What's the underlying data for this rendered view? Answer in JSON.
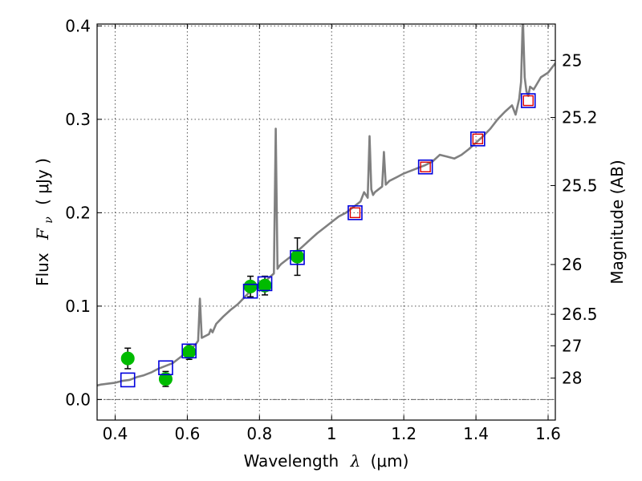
{
  "chart_data": {
    "type": "scatter",
    "xlabel": "Wavelength",
    "xlabel_symbol": "λ",
    "xlabel_unit": "(μm)",
    "ylabel": "Flux",
    "ylabel_symbol": "F",
    "ylabel_sub": "ν",
    "ylabel_unit": "( μJy )",
    "y2label": "Magnitude (AB)",
    "xlim": [
      0.35,
      1.62
    ],
    "ylim": [
      -0.022,
      0.402
    ],
    "grid": true,
    "x_ticks": [
      0.4,
      0.6,
      0.8,
      1.0,
      1.2,
      1.4,
      1.6
    ],
    "x_tick_labels": [
      "0.4",
      "0.6",
      "0.8",
      "1",
      "1.2",
      "1.4",
      "1.6"
    ],
    "y_ticks": [
      0.0,
      0.1,
      0.2,
      0.3,
      0.4
    ],
    "y_tick_labels": [
      "0.0",
      "0.1",
      "0.2",
      "0.3",
      "0.4"
    ],
    "y2_ticks": [
      25,
      25.2,
      25.5,
      26,
      26.5,
      27,
      28
    ],
    "y2_tick_labels": [
      "25",
      "25.2",
      "25.5",
      "26",
      "26.5",
      "27",
      "28"
    ],
    "colors": {
      "model": "#808080",
      "observed": "#00bb00",
      "model_phot": "#0000dd",
      "ir_phot": "#dd0000",
      "errorbar": "#000000",
      "zero_line": "#666666"
    },
    "series": [
      {
        "name": "model-spectrum",
        "kind": "line",
        "x": [
          0.35,
          0.36,
          0.38,
          0.4,
          0.42,
          0.44,
          0.46,
          0.48,
          0.5,
          0.52,
          0.54,
          0.56,
          0.57,
          0.58,
          0.59,
          0.6,
          0.61,
          0.615,
          0.62,
          0.625,
          0.63,
          0.635,
          0.64,
          0.65,
          0.66,
          0.665,
          0.67,
          0.68,
          0.69,
          0.7,
          0.72,
          0.74,
          0.75,
          0.76,
          0.78,
          0.8,
          0.82,
          0.84,
          0.845,
          0.85,
          0.855,
          0.86,
          0.88,
          0.9,
          0.92,
          0.94,
          0.96,
          0.98,
          1.0,
          1.02,
          1.04,
          1.06,
          1.08,
          1.09,
          1.1,
          1.105,
          1.11,
          1.115,
          1.12,
          1.14,
          1.145,
          1.15,
          1.16,
          1.18,
          1.2,
          1.22,
          1.24,
          1.26,
          1.28,
          1.3,
          1.32,
          1.34,
          1.36,
          1.38,
          1.4,
          1.42,
          1.44,
          1.46,
          1.48,
          1.5,
          1.51,
          1.52,
          1.525,
          1.53,
          1.535,
          1.54,
          1.545,
          1.55,
          1.56,
          1.58,
          1.6,
          1.62
        ],
        "y": [
          0.015,
          0.016,
          0.017,
          0.018,
          0.02,
          0.021,
          0.024,
          0.026,
          0.029,
          0.033,
          0.036,
          0.039,
          0.042,
          0.045,
          0.048,
          0.051,
          0.054,
          0.056,
          0.058,
          0.06,
          0.063,
          0.108,
          0.066,
          0.068,
          0.07,
          0.075,
          0.072,
          0.081,
          0.085,
          0.089,
          0.096,
          0.102,
          0.106,
          0.11,
          0.118,
          0.124,
          0.128,
          0.135,
          0.29,
          0.14,
          0.143,
          0.145,
          0.151,
          0.157,
          0.164,
          0.171,
          0.178,
          0.184,
          0.19,
          0.196,
          0.2,
          0.206,
          0.212,
          0.222,
          0.216,
          0.282,
          0.225,
          0.219,
          0.222,
          0.228,
          0.265,
          0.23,
          0.234,
          0.238,
          0.242,
          0.245,
          0.248,
          0.251,
          0.255,
          0.262,
          0.26,
          0.258,
          0.262,
          0.268,
          0.275,
          0.282,
          0.29,
          0.3,
          0.308,
          0.315,
          0.305,
          0.322,
          0.34,
          0.41,
          0.345,
          0.33,
          0.325,
          0.335,
          0.332,
          0.345,
          0.35,
          0.36
        ]
      },
      {
        "name": "observed",
        "kind": "points-errorbar",
        "x": [
          0.435,
          0.54,
          0.605,
          0.775,
          0.815,
          0.905
        ],
        "y": [
          0.044,
          0.022,
          0.051,
          0.121,
          0.122,
          0.153
        ],
        "yerr": [
          0.011,
          0.008,
          0.008,
          0.011,
          0.01,
          0.02
        ]
      },
      {
        "name": "model-photometry",
        "kind": "open-squares",
        "x": [
          0.435,
          0.54,
          0.605,
          0.775,
          0.815,
          0.905,
          1.065,
          1.26,
          1.405,
          1.545
        ],
        "y": [
          0.021,
          0.034,
          0.052,
          0.116,
          0.124,
          0.152,
          0.2,
          0.249,
          0.279,
          0.32
        ]
      },
      {
        "name": "ir-photometry",
        "kind": "open-squares-small",
        "x": [
          1.065,
          1.26,
          1.405,
          1.545
        ],
        "y": [
          0.2,
          0.249,
          0.279,
          0.32
        ]
      }
    ]
  }
}
